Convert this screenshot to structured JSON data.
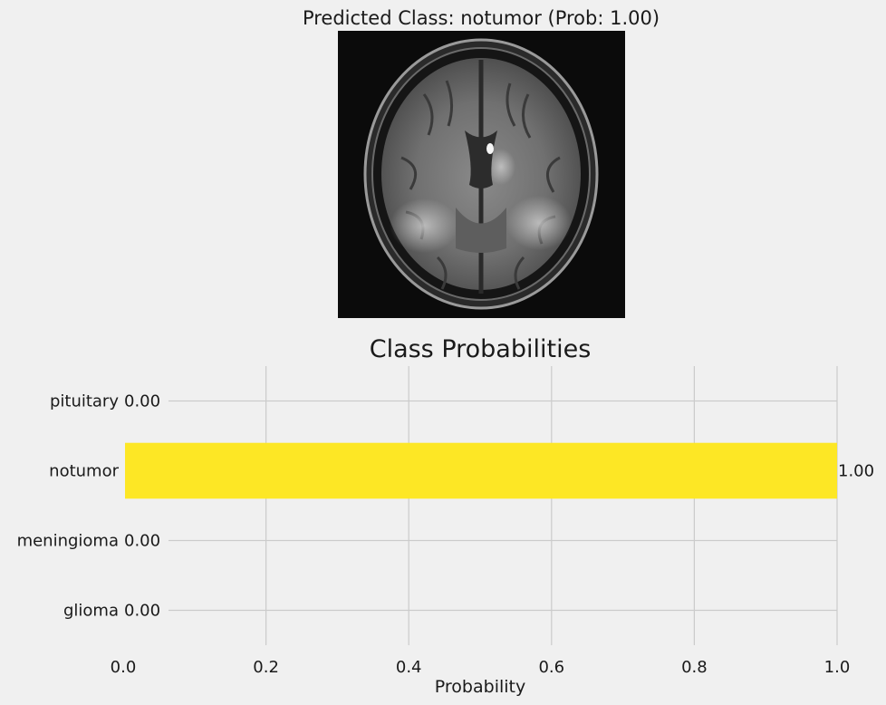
{
  "prediction": {
    "title": "Predicted Class: notumor (Prob: 1.00)"
  },
  "chart_data": {
    "type": "bar",
    "orientation": "horizontal",
    "title": "Class Probabilities",
    "xlabel": "Probability",
    "ylabel": "",
    "categories": [
      "glioma",
      "meningioma",
      "notumor",
      "pituitary"
    ],
    "values": [
      0.0,
      0.0,
      1.0,
      0.0
    ],
    "value_labels": [
      "0.00",
      "0.00",
      "1.00",
      "0.00"
    ],
    "xlim": [
      0,
      1
    ],
    "xticks": [
      "0.0",
      "0.2",
      "0.4",
      "0.6",
      "0.8",
      "1.0"
    ],
    "grid": true,
    "bar_color": "#fde725"
  }
}
